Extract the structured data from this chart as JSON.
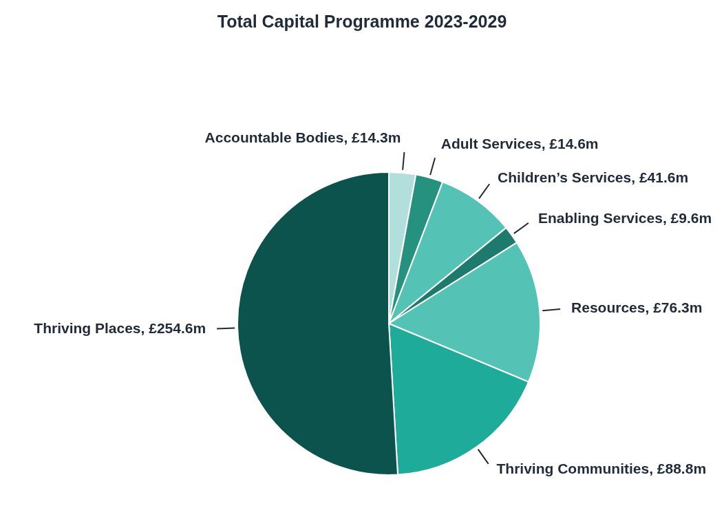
{
  "chart_data": {
    "type": "pie",
    "title": "Total Capital Programme 2023-2029",
    "categories": [
      "Accountable Bodies",
      "Adult Services",
      "Children’s Services",
      "Enabling Services",
      "Resources",
      "Thriving Communities",
      "Thriving Places"
    ],
    "values": [
      14.3,
      14.6,
      41.6,
      9.6,
      76.3,
      88.8,
      254.6
    ],
    "value_labels": [
      "£14.3m",
      "£14.6m",
      "£41.6m",
      "£9.6m",
      "£76.3m",
      "£88.8m",
      "£254.6m"
    ],
    "colors": [
      "#b2dfdb",
      "#26917f",
      "#55c2b6",
      "#1e7a6c",
      "#55c2b6",
      "#1eab9a",
      "#0b534c"
    ],
    "legend": false
  }
}
